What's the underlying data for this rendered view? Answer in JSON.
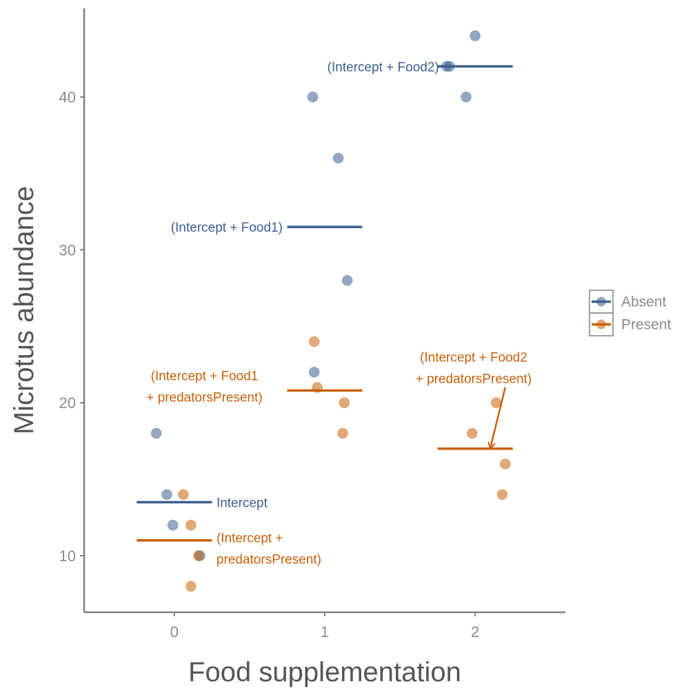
{
  "chart_data": {
    "type": "scatter",
    "title": "",
    "xlabel": "Food supplementation",
    "ylabel": "Microtus abundance",
    "xlim": [
      -0.6,
      2.6
    ],
    "ylim": [
      6.3,
      45.8
    ],
    "x_ticks": [
      0,
      1,
      2
    ],
    "x_tick_labels": [
      "0",
      "1",
      "2"
    ],
    "y_ticks": [
      10,
      20,
      30,
      40
    ],
    "y_tick_labels": [
      "10",
      "20",
      "30",
      "40"
    ],
    "grid": false,
    "legend_position": "right",
    "series": [
      {
        "name": "Absent",
        "color": "#3b5f8f",
        "points": [
          {
            "x": -0.12,
            "y": 18
          },
          {
            "x": -0.05,
            "y": 14
          },
          {
            "x": -0.01,
            "y": 12
          },
          {
            "x": 0.17,
            "y": 10
          },
          {
            "x": 0.92,
            "y": 40
          },
          {
            "x": 1.09,
            "y": 36
          },
          {
            "x": 1.15,
            "y": 28
          },
          {
            "x": 0.93,
            "y": 22
          },
          {
            "x": 1.81,
            "y": 42
          },
          {
            "x": 1.83,
            "y": 42
          },
          {
            "x": 1.94,
            "y": 40
          },
          {
            "x": 2.0,
            "y": 44
          }
        ],
        "fitted": [
          {
            "x_from": -0.25,
            "x_to": 0.25,
            "y": 13.5
          },
          {
            "x_from": 0.75,
            "x_to": 1.25,
            "y": 31.5
          },
          {
            "x_from": 1.75,
            "x_to": 2.25,
            "y": 42
          }
        ]
      },
      {
        "name": "Present",
        "color": "#c8600a",
        "points": [
          {
            "x": 0.06,
            "y": 14
          },
          {
            "x": 0.11,
            "y": 12
          },
          {
            "x": 0.16,
            "y": 10
          },
          {
            "x": 0.11,
            "y": 8
          },
          {
            "x": 0.93,
            "y": 24
          },
          {
            "x": 0.95,
            "y": 21
          },
          {
            "x": 1.13,
            "y": 20
          },
          {
            "x": 1.12,
            "y": 18
          },
          {
            "x": 1.98,
            "y": 18
          },
          {
            "x": 2.14,
            "y": 20
          },
          {
            "x": 2.2,
            "y": 16
          },
          {
            "x": 2.18,
            "y": 14
          }
        ],
        "fitted": [
          {
            "x_from": -0.25,
            "x_to": 0.25,
            "y": 11
          },
          {
            "x_from": 0.75,
            "x_to": 1.25,
            "y": 20.8
          },
          {
            "x_from": 1.75,
            "x_to": 2.25,
            "y": 17
          }
        ]
      }
    ],
    "annotations": [
      {
        "lines": [
          "(Intercept + Food2)"
        ],
        "series": 0,
        "x": 1.76,
        "y": 42,
        "anchor": "end"
      },
      {
        "lines": [
          "(Intercept + Food1)"
        ],
        "series": 0,
        "x": 0.72,
        "y": 31.5,
        "anchor": "end"
      },
      {
        "lines": [
          "Intercept"
        ],
        "series": 0,
        "x": 0.28,
        "y": 13.5,
        "anchor": "start"
      },
      {
        "lines": [
          "(Intercept + Food1",
          "+ predatorsPresent)"
        ],
        "series": 1,
        "x": 0.2,
        "y": 21.1,
        "anchor": "middle"
      },
      {
        "lines": [
          "(Intercept + Food2",
          "+ predatorsPresent)"
        ],
        "series": 1,
        "x": 1.99,
        "y": 22.3,
        "anchor": "middle"
      },
      {
        "lines": [
          "(Intercept +",
          "predatorsPresent)"
        ],
        "series": 1,
        "x": 0.28,
        "y": 10.5,
        "anchor": "start"
      }
    ],
    "arrows": [
      {
        "series": 1,
        "x_from": 2.2,
        "y_from": 21.0,
        "x_to": 2.1,
        "y_to": 17.0
      }
    ]
  }
}
